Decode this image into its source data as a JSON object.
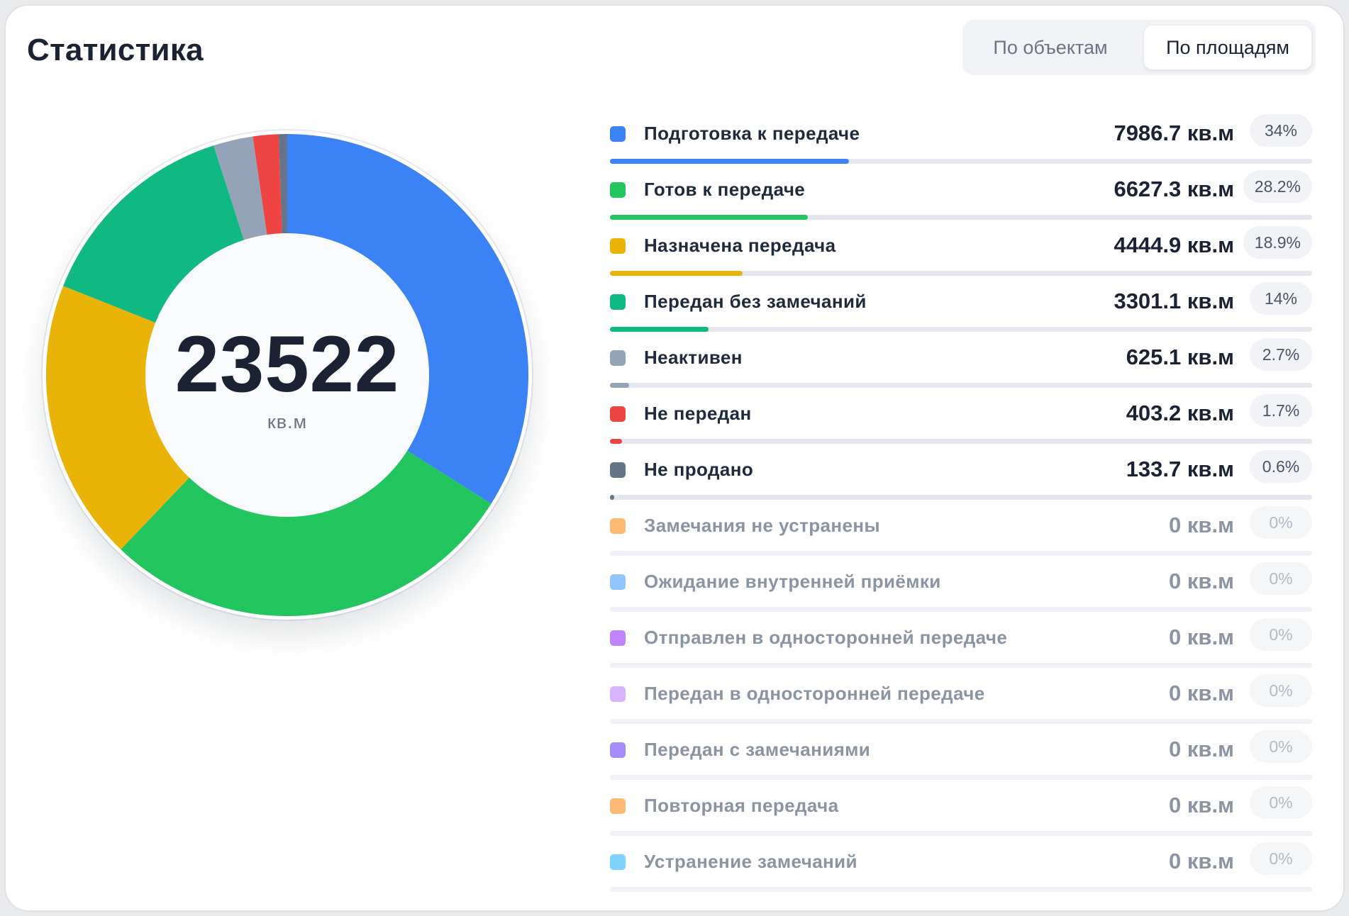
{
  "header": {
    "title": "Статистика",
    "tabs": [
      {
        "label": "По объектам",
        "active": false
      },
      {
        "label": "По площадям",
        "active": true
      }
    ]
  },
  "chart_data": {
    "type": "pie",
    "total": "23522",
    "unit": "кв.м",
    "categories": [
      "Подготовка к передаче",
      "Готов к передаче",
      "Назначена передача",
      "Передан без замечаний",
      "Неактивен",
      "Не передан",
      "Не продано",
      "Замечания не устранены",
      "Ожидание внутренней приёмки",
      "Отправлен в односторонней передаче",
      "Передан в односторонней передаче",
      "Передан с замечаниями",
      "Повторная передача",
      "Устранение замечаний"
    ],
    "values": [
      7986.7,
      6627.3,
      4444.9,
      3301.1,
      625.1,
      403.2,
      133.7,
      0,
      0,
      0,
      0,
      0,
      0,
      0
    ],
    "value_labels": [
      "7986.7 кв.м",
      "6627.3 кв.м",
      "4444.9 кв.м",
      "3301.1 кв.м",
      "625.1 кв.м",
      "403.2 кв.м",
      "133.7 кв.м",
      "0 кв.м",
      "0 кв.м",
      "0 кв.м",
      "0 кв.м",
      "0 кв.м",
      "0 кв.м",
      "0 кв.м"
    ],
    "percents": [
      "34%",
      "28.2%",
      "18.9%",
      "14%",
      "2.7%",
      "1.7%",
      "0.6%",
      "0%",
      "0%",
      "0%",
      "0%",
      "0%",
      "0%",
      "0%"
    ],
    "percent_values": [
      34,
      28.2,
      18.9,
      14,
      2.7,
      1.7,
      0.6,
      0,
      0,
      0,
      0,
      0,
      0,
      0
    ],
    "colors": [
      "#3b82f6",
      "#22c55e",
      "#eab308",
      "#10b981",
      "#94a3b8",
      "#ef4444",
      "#64748b",
      "#fdba74",
      "#93c5fd",
      "#c084fc",
      "#d8b4fe",
      "#a78bfa",
      "#fdba74",
      "#7dd3fc"
    ],
    "legend": "right"
  }
}
